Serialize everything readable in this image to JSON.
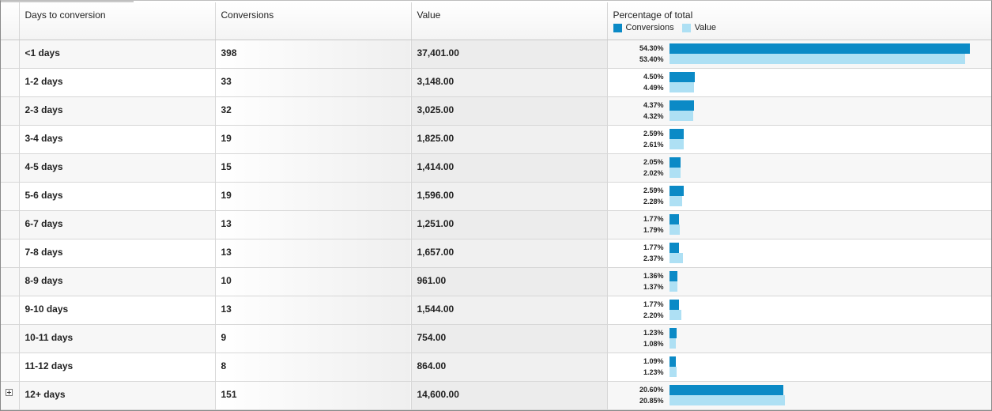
{
  "header": {
    "col_days": "Days to conversion",
    "col_conversions": "Conversions",
    "col_value": "Value",
    "col_percentage": "Percentage of total",
    "legend_conversions": "Conversions",
    "legend_value": "Value"
  },
  "colors": {
    "conversions_bar": "#0b8ac6",
    "value_bar": "#aee0f4"
  },
  "rows": [
    {
      "days": "<1 days",
      "conversions": "398",
      "value": "37,401.00",
      "conv_pct": "54.30%",
      "val_pct": "53.40%",
      "conv_frac": 0.543,
      "val_frac": 0.534
    },
    {
      "days": "1-2 days",
      "conversions": "33",
      "value": "3,148.00",
      "conv_pct": "4.50%",
      "val_pct": "4.49%",
      "conv_frac": 0.045,
      "val_frac": 0.0449
    },
    {
      "days": "2-3 days",
      "conversions": "32",
      "value": "3,025.00",
      "conv_pct": "4.37%",
      "val_pct": "4.32%",
      "conv_frac": 0.0437,
      "val_frac": 0.0432
    },
    {
      "days": "3-4 days",
      "conversions": "19",
      "value": "1,825.00",
      "conv_pct": "2.59%",
      "val_pct": "2.61%",
      "conv_frac": 0.0259,
      "val_frac": 0.0261
    },
    {
      "days": "4-5 days",
      "conversions": "15",
      "value": "1,414.00",
      "conv_pct": "2.05%",
      "val_pct": "2.02%",
      "conv_frac": 0.0205,
      "val_frac": 0.0202
    },
    {
      "days": "5-6 days",
      "conversions": "19",
      "value": "1,596.00",
      "conv_pct": "2.59%",
      "val_pct": "2.28%",
      "conv_frac": 0.0259,
      "val_frac": 0.0228
    },
    {
      "days": "6-7 days",
      "conversions": "13",
      "value": "1,251.00",
      "conv_pct": "1.77%",
      "val_pct": "1.79%",
      "conv_frac": 0.0177,
      "val_frac": 0.0179
    },
    {
      "days": "7-8 days",
      "conversions": "13",
      "value": "1,657.00",
      "conv_pct": "1.77%",
      "val_pct": "2.37%",
      "conv_frac": 0.0177,
      "val_frac": 0.0237
    },
    {
      "days": "8-9 days",
      "conversions": "10",
      "value": "961.00",
      "conv_pct": "1.36%",
      "val_pct": "1.37%",
      "conv_frac": 0.0136,
      "val_frac": 0.0137
    },
    {
      "days": "9-10 days",
      "conversions": "13",
      "value": "1,544.00",
      "conv_pct": "1.77%",
      "val_pct": "2.20%",
      "conv_frac": 0.0177,
      "val_frac": 0.022
    },
    {
      "days": "10-11 days",
      "conversions": "9",
      "value": "754.00",
      "conv_pct": "1.23%",
      "val_pct": "1.08%",
      "conv_frac": 0.0123,
      "val_frac": 0.0108
    },
    {
      "days": "11-12 days",
      "conversions": "8",
      "value": "864.00",
      "conv_pct": "1.09%",
      "val_pct": "1.23%",
      "conv_frac": 0.0109,
      "val_frac": 0.0123
    },
    {
      "days": "12+ days",
      "conversions": "151",
      "value": "14,600.00",
      "conv_pct": "20.60%",
      "val_pct": "20.85%",
      "conv_frac": 0.206,
      "val_frac": 0.2085,
      "expandable": true
    }
  ]
}
